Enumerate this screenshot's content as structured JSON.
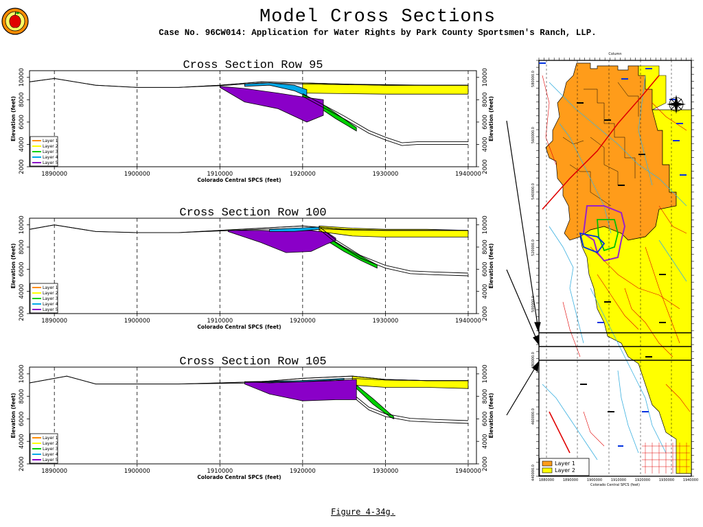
{
  "header": {
    "title": "Model Cross Sections",
    "subtitle": "Case No. 96CW014: Application for Water Rights by Park County Sportsmen's Ranch, LLP.",
    "figure": "Figure 4-34g."
  },
  "colors": {
    "layer1": "#ff8c00",
    "layer2": "#ffff00",
    "layer3": "#00d000",
    "layer4": "#00a8e8",
    "layer5": "#8a00c8",
    "grid": "#000000"
  },
  "map": {
    "legend": [
      "Layer 1",
      "Layer 2"
    ],
    "x_ticks": [
      "1880000",
      "1890000",
      "1900000",
      "1910000",
      "1920000",
      "1930000",
      "1940000"
    ],
    "y_ticks": [
      "580000.0",
      "560000.0",
      "540000.0",
      "520000.0",
      "500000.0",
      "480000.0",
      "460000.0",
      "440000.0"
    ],
    "top_label": "Column",
    "bottom_label": "Colorado Central SPCS (feet)"
  },
  "chart_data": [
    {
      "type": "area",
      "title": "Cross Section Row 95",
      "xlabel": "Colorado Central SPCS (feet)",
      "ylabel": "Elevation (feet)",
      "xlim": [
        1887000,
        1941000
      ],
      "ylim": [
        2000,
        10600
      ],
      "x_ticks": [
        1890000,
        1900000,
        1910000,
        1920000,
        1930000,
        1940000
      ],
      "y_ticks": [
        2000,
        4000,
        6000,
        8000,
        10000
      ],
      "grid": "vertical dashed",
      "legend": {
        "position": "bottom-left",
        "entries": [
          "Layer 1",
          "Layer 2",
          "Layer 3",
          "Layer 4",
          "Layer 5"
        ]
      },
      "series": [
        {
          "name": "Layer 1",
          "x": [
            1887000,
            1890000,
            1895000,
            1900000,
            1905000,
            1910000,
            1915000,
            1920000,
            1925000,
            1930000,
            1935000,
            1940000
          ],
          "top": [
            9600,
            9900,
            9300,
            9100,
            9100,
            9300,
            9600,
            9500,
            9400,
            9300,
            9300,
            9300
          ],
          "bottom": [
            9600,
            9900,
            9300,
            9100,
            9100,
            9250,
            9500,
            9400,
            9350,
            9300,
            9300,
            9300
          ]
        },
        {
          "name": "Layer 2",
          "x": [
            1920000,
            1925000,
            1930000,
            1935000,
            1940000
          ],
          "top": [
            9500,
            9400,
            9350,
            9300,
            9300
          ],
          "bottom": [
            8600,
            8550,
            8500,
            8500,
            8500
          ]
        },
        {
          "name": "Layer 3",
          "x": [
            1920000,
            1922000,
            1924000,
            1926500
          ],
          "top": [
            8500,
            7800,
            6800,
            5500
          ],
          "bottom": [
            8300,
            7300,
            6300,
            5200
          ]
        },
        {
          "name": "Layer 4",
          "x": [
            1913000,
            1916000,
            1919000,
            1920500
          ],
          "top": [
            9400,
            9500,
            9300,
            8900
          ],
          "bottom": [
            9200,
            9300,
            8800,
            8300
          ]
        },
        {
          "name": "Layer 5",
          "x": [
            1910000,
            1913000,
            1917000,
            1920500,
            1922500
          ],
          "top": [
            9200,
            9000,
            8600,
            8200,
            8000
          ],
          "bottom": [
            9100,
            7800,
            7200,
            6000,
            6600
          ]
        },
        {
          "name": "Bottom",
          "x": [
            1920000,
            1925000,
            1928000,
            1930000,
            1932000,
            1934000,
            1937000,
            1940000
          ],
          "values": [
            8300,
            6300,
            5000,
            4400,
            3900,
            4000,
            4000,
            4000
          ]
        }
      ]
    },
    {
      "type": "area",
      "title": "Cross Section Row 100",
      "xlabel": "Colorado Central SPCS (feet)",
      "ylabel": "Elevation (feet)",
      "xlim": [
        1887000,
        1941000
      ],
      "ylim": [
        2000,
        10600
      ],
      "x_ticks": [
        1890000,
        1900000,
        1910000,
        1920000,
        1930000,
        1940000
      ],
      "y_ticks": [
        2000,
        4000,
        6000,
        8000,
        10000
      ],
      "grid": "vertical dashed",
      "legend": {
        "position": "bottom-left",
        "entries": [
          "Layer 1",
          "Layer 2",
          "Layer 3",
          "Layer 4",
          "Layer 5"
        ]
      },
      "series": [
        {
          "name": "Layer 1",
          "x": [
            1887000,
            1890000,
            1895000,
            1900000,
            1905000,
            1910000,
            1915000,
            1920000,
            1925000,
            1930000,
            1935000,
            1940000
          ],
          "top": [
            9600,
            10000,
            9400,
            9300,
            9300,
            9500,
            9700,
            9900,
            9600,
            9500,
            9500,
            9500
          ],
          "bottom": [
            9600,
            10000,
            9400,
            9300,
            9300,
            9450,
            9600,
            9700,
            9550,
            9500,
            9500,
            9500
          ]
        },
        {
          "name": "Layer 2",
          "x": [
            1922000,
            1926000,
            1930000,
            1935000,
            1940000
          ],
          "top": [
            9900,
            9700,
            9600,
            9600,
            9500
          ],
          "bottom": [
            9400,
            9000,
            8900,
            8900,
            8900
          ]
        },
        {
          "name": "Layer 3",
          "x": [
            1922000,
            1925000,
            1927000,
            1929000
          ],
          "top": [
            9400,
            8000,
            7200,
            6400
          ],
          "bottom": [
            9000,
            7600,
            6800,
            6100
          ]
        },
        {
          "name": "Layer 4",
          "x": [
            1916000,
            1919000,
            1922000
          ],
          "top": [
            9600,
            9700,
            9800
          ],
          "bottom": [
            9400,
            9400,
            9600
          ]
        },
        {
          "name": "Layer 5",
          "x": [
            1911000,
            1915000,
            1918000,
            1921000,
            1923000,
            1924000
          ],
          "top": [
            9500,
            9500,
            9400,
            9500,
            9300,
            8800
          ],
          "bottom": [
            9400,
            8400,
            7500,
            7600,
            8300,
            8600
          ]
        },
        {
          "name": "Bottom",
          "x": [
            1922000,
            1924000,
            1927000,
            1930000,
            1933000,
            1936000,
            1940000
          ],
          "values": [
            9600,
            8400,
            7000,
            6100,
            5600,
            5500,
            5400
          ]
        }
      ]
    },
    {
      "type": "area",
      "title": "Cross Section Row 105",
      "xlabel": "Colorado Central SPCS (feet)",
      "ylabel": "Elevation (feet)",
      "xlim": [
        1887000,
        1941000
      ],
      "ylim": [
        2000,
        10600
      ],
      "x_ticks": [
        1890000,
        1900000,
        1910000,
        1920000,
        1930000,
        1940000
      ],
      "y_ticks": [
        2000,
        4000,
        6000,
        8000,
        10000
      ],
      "grid": "vertical dashed",
      "legend": {
        "position": "bottom-left",
        "entries": [
          "Layer 1",
          "Layer 2",
          "Layer 3",
          "Layer 4",
          "Layer 5"
        ]
      },
      "series": [
        {
          "name": "Layer 1",
          "x": [
            1887000,
            1891500,
            1895000,
            1900000,
            1905000,
            1910000,
            1915000,
            1920000,
            1926000,
            1930000,
            1935000,
            1940000
          ],
          "top": [
            9200,
            9800,
            9100,
            9100,
            9100,
            9200,
            9300,
            9600,
            9800,
            9500,
            9400,
            9400
          ],
          "bottom": [
            9200,
            9800,
            9100,
            9100,
            9100,
            9150,
            9200,
            9400,
            9600,
            9450,
            9400,
            9400
          ]
        },
        {
          "name": "Layer 2",
          "x": [
            1926000,
            1930000,
            1935000,
            1940000
          ],
          "top": [
            9800,
            9500,
            9400,
            9400
          ],
          "bottom": [
            9000,
            8800,
            8800,
            8700
          ]
        },
        {
          "name": "Layer 3",
          "x": [
            1926500,
            1928500,
            1930500,
            1931000
          ],
          "top": [
            9000,
            7800,
            6500,
            6200
          ],
          "bottom": [
            8700,
            7300,
            6200,
            6000
          ]
        },
        {
          "name": "Layer 4",
          "x": [
            1913000,
            1920000,
            1925000
          ],
          "top": [
            9300,
            9400,
            9600
          ],
          "bottom": [
            9250,
            9300,
            9500
          ]
        },
        {
          "name": "Layer 5",
          "x": [
            1913000,
            1916000,
            1920000,
            1924000,
            1926500
          ],
          "top": [
            9300,
            9200,
            9300,
            9400,
            9500
          ],
          "bottom": [
            9100,
            8200,
            7600,
            7700,
            7700
          ]
        },
        {
          "name": "Bottom",
          "x": [
            1926500,
            1928000,
            1930000,
            1933000,
            1936000,
            1940000
          ],
          "values": [
            7700,
            6800,
            6200,
            5800,
            5700,
            5600
          ]
        }
      ]
    }
  ]
}
